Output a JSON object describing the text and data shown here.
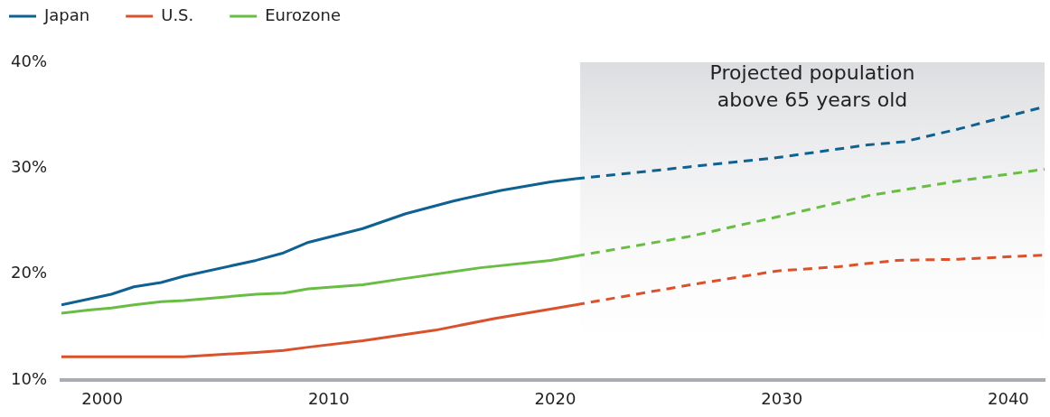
{
  "chart_data": {
    "type": "line",
    "series": [
      {
        "name": "Japan",
        "color": "#0f6192",
        "x": [
          1998.2,
          2000.4,
          2001.4,
          2002.6,
          2003.6,
          2006.8,
          2008,
          2009.1,
          2011.5,
          2013.4,
          2015.5,
          2017.6,
          2019.8,
          2020.9
        ],
        "values": [
          17.1,
          18.1,
          18.8,
          19.2,
          19.8,
          21.3,
          22.0,
          23.0,
          24.3,
          25.7,
          26.9,
          27.9,
          28.7,
          29.0
        ]
      },
      {
        "name": "U.S.",
        "color": "#d9522b",
        "x": [
          1998.2,
          2003.6,
          2006.8,
          2008,
          2009.1,
          2011.5,
          2013.4,
          2014.7,
          2017.3,
          2020.9
        ],
        "values": [
          12.2,
          12.2,
          12.6,
          12.8,
          13.1,
          13.7,
          14.3,
          14.7,
          15.8,
          17.1
        ]
      },
      {
        "name": "Eurozone",
        "color": "#69bd45",
        "x": [
          1998.2,
          1999.4,
          2000.4,
          2001.4,
          2002.6,
          2003.6,
          2006.8,
          2008,
          2009.1,
          2011.5,
          2013.4,
          2016.7,
          2019.8,
          2020.9
        ],
        "values": [
          16.3,
          16.6,
          16.8,
          17.1,
          17.4,
          17.5,
          18.1,
          18.2,
          18.6,
          19.0,
          19.6,
          20.6,
          21.3,
          21.7
        ]
      },
      {
        "color": "#0f6192",
        "line_style": "dashed",
        "x": [
          2020.9,
          2025.8,
          2029.8,
          2033.8,
          2035.4,
          2037.8,
          2041.6
        ],
        "values": [
          29.0,
          30.1,
          31.0,
          32.2,
          32.5,
          33.7,
          35.8
        ]
      },
      {
        "color": "#d9522b",
        "line_style": "dashed",
        "x": [
          2020.9,
          2026,
          2029.8,
          2032.5,
          2035.1,
          2037.8,
          2041.6
        ],
        "values": [
          17.1,
          19.0,
          20.3,
          20.7,
          21.3,
          21.4,
          21.8
        ]
      },
      {
        "color": "#69bd45",
        "line_style": "dashed",
        "x": [
          2020.9,
          2025.8,
          2029.8,
          2033.8,
          2037.8,
          2041.6
        ],
        "values": [
          21.7,
          23.5,
          25.4,
          27.4,
          28.8,
          29.9
        ]
      }
    ],
    "xlim": [
      1998.2,
      2041.6
    ],
    "xticks": [
      2000,
      2010,
      2020,
      2030,
      2040
    ],
    "ylim": [
      10,
      40
    ],
    "yticks": [
      {
        "value": 10,
        "label": "10%"
      },
      {
        "value": 20,
        "label": "20%"
      },
      {
        "value": 30,
        "label": "30%"
      },
      {
        "value": 40,
        "label": "40%"
      }
    ],
    "bands": [
      {
        "axis": "x",
        "from": 2021.1,
        "to": 2041.6,
        "label": "Projected population above 65 years old",
        "color": "#dcdde0"
      }
    ],
    "legend": "top left",
    "marker": "none",
    "line_style": "solid"
  }
}
